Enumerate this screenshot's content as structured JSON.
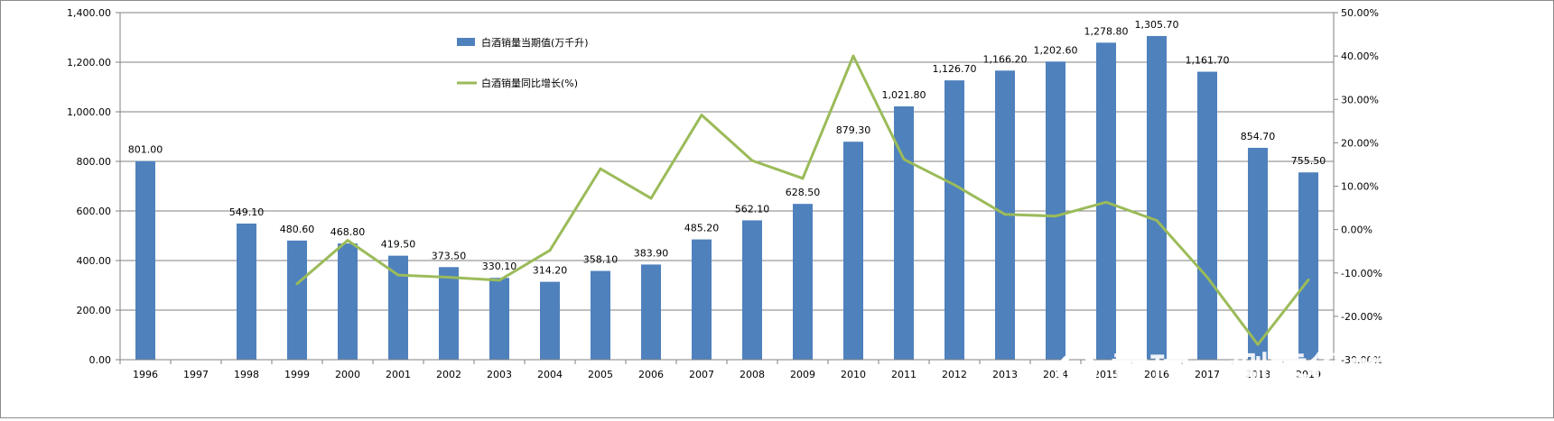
{
  "chart_data": {
    "type": "bar",
    "title": "",
    "xlabel": "",
    "ylabel": "",
    "categories": [
      "1996",
      "1997",
      "1998",
      "1999",
      "2000",
      "2001",
      "2002",
      "2003",
      "2004",
      "2005",
      "2006",
      "2007",
      "2008",
      "2009",
      "2010",
      "2011",
      "2012",
      "2013",
      "2014",
      "2015",
      "2016",
      "2017",
      "2018",
      "2019"
    ],
    "series": [
      {
        "name": "白酒销量当期值(万千升)",
        "type": "bar",
        "axis": "left",
        "color": "#4f81bd",
        "values": [
          801.0,
          null,
          549.1,
          480.6,
          468.8,
          419.5,
          373.5,
          330.1,
          314.2,
          358.1,
          383.9,
          485.2,
          562.1,
          628.5,
          879.3,
          1021.8,
          1126.7,
          1166.2,
          1202.6,
          1278.8,
          1305.7,
          1161.7,
          854.7,
          755.5
        ],
        "labels": [
          "801.00",
          "",
          "549.10",
          "480.60",
          "468.80",
          "419.50",
          "373.50",
          "330.10",
          "314.20",
          "358.10",
          "383.90",
          "485.20",
          "562.10",
          "628.50",
          "879.30",
          "1,021.80",
          "1,126.70",
          "1,166.20",
          "1,202.60",
          "1,278.80",
          "1,305.70",
          "1,161.70",
          "854.70",
          "755.50"
        ]
      },
      {
        "name": "白酒销量同比增长(%)",
        "type": "line",
        "axis": "right",
        "color": "#9bbb59",
        "values": [
          null,
          null,
          null,
          -12.5,
          -2.5,
          -10.5,
          -11.0,
          -11.7,
          -4.8,
          14.0,
          7.2,
          26.4,
          15.9,
          11.8,
          40.0,
          16.2,
          10.3,
          3.5,
          3.1,
          6.3,
          2.1,
          -11.0,
          -26.5,
          -11.6
        ]
      }
    ],
    "y_left": {
      "ylim": [
        0,
        1400
      ],
      "ticks": [
        0,
        200,
        400,
        600,
        800,
        1000,
        1200,
        1400
      ],
      "tick_labels": [
        "0.00",
        "200.00",
        "400.00",
        "600.00",
        "800.00",
        "1,000.00",
        "1,200.00",
        "1,400.00"
      ]
    },
    "y_right": {
      "ylim": [
        -30,
        50
      ],
      "ticks": [
        -30,
        -20,
        -10,
        0,
        10,
        20,
        30,
        40,
        50
      ],
      "tick_labels": [
        "-30.00%",
        "-20.00%",
        "-10.00%",
        "0.00%",
        "10.00%",
        "20.00%",
        "30.00%",
        "40.00%",
        "50.00%"
      ]
    },
    "grid": true,
    "legend_position": "top-center"
  },
  "watermark": {
    "text": "雪球：捌零後的青春",
    "icon": "snowball-logo-icon"
  }
}
